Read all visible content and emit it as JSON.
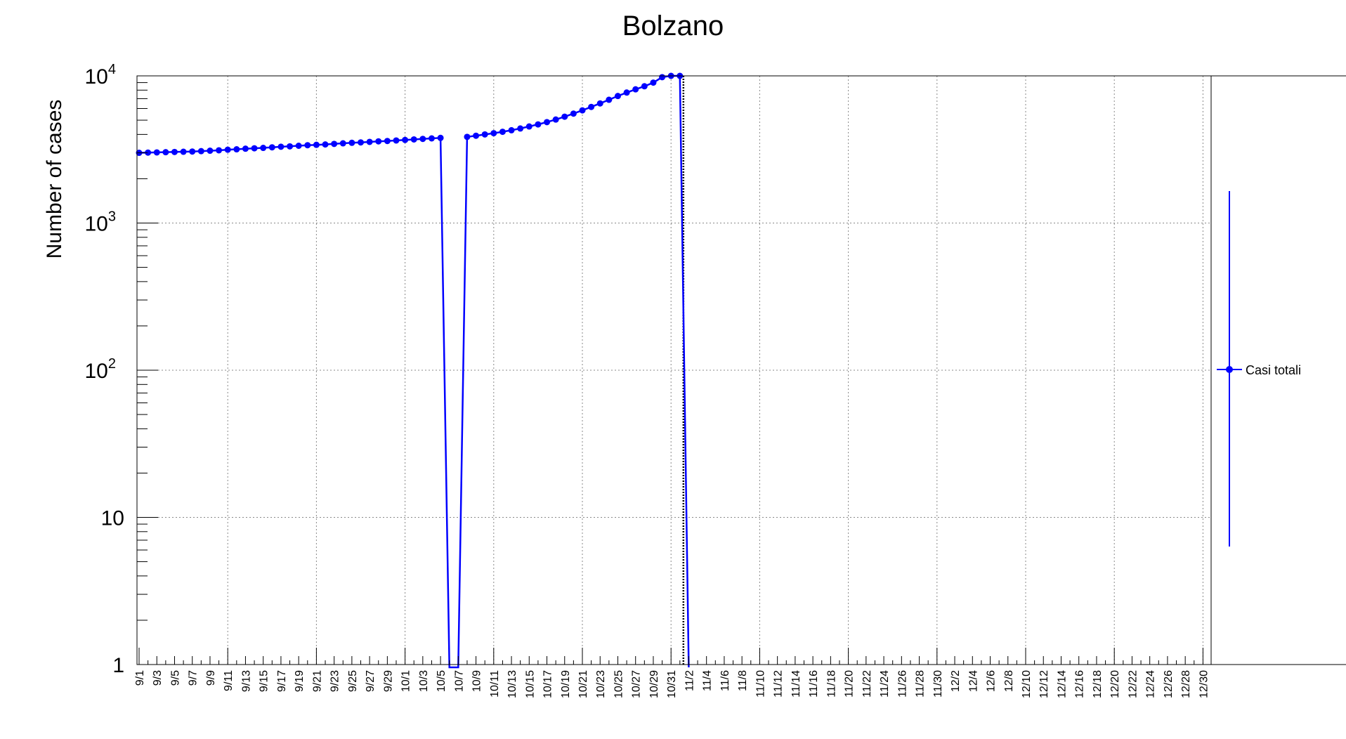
{
  "chart_data": {
    "type": "line",
    "title": "Bolzano",
    "xlabel": "",
    "ylabel": "Number of cases",
    "yscale": "log",
    "ylim": [
      1,
      10000
    ],
    "grid": true,
    "legend_position": "right",
    "y_tick_labels": [
      {
        "value": 1,
        "base": "1",
        "exp": ""
      },
      {
        "value": 10,
        "base": "10",
        "exp": ""
      },
      {
        "value": 100,
        "base": "10",
        "exp": "2"
      },
      {
        "value": 1000,
        "base": "10",
        "exp": "3"
      },
      {
        "value": 10000,
        "base": "10",
        "exp": "4"
      }
    ],
    "x_tick_labels": [
      "9/1",
      "9/3",
      "9/5",
      "9/7",
      "9/9",
      "9/11",
      "9/13",
      "9/15",
      "9/17",
      "9/19",
      "9/21",
      "9/23",
      "9/25",
      "9/27",
      "9/29",
      "10/1",
      "10/3",
      "10/5",
      "10/7",
      "10/9",
      "10/11",
      "10/13",
      "10/15",
      "10/17",
      "10/19",
      "10/21",
      "10/23",
      "10/25",
      "10/27",
      "10/29",
      "10/31",
      "11/2",
      "11/4",
      "11/6",
      "11/8",
      "11/10",
      "11/12",
      "11/14",
      "11/16",
      "11/18",
      "11/20",
      "11/22",
      "11/24",
      "11/26",
      "11/28",
      "11/30",
      "12/2",
      "12/4",
      "12/6",
      "12/8",
      "12/10",
      "12/12",
      "12/14",
      "12/16",
      "12/18",
      "12/20",
      "12/22",
      "12/24",
      "12/26",
      "12/28",
      "12/30"
    ],
    "marker_line": "11/1",
    "series": [
      {
        "name": "Casi totali",
        "color": "#0000ff",
        "x": [
          "9/1",
          "9/2",
          "9/3",
          "9/4",
          "9/5",
          "9/6",
          "9/7",
          "9/8",
          "9/9",
          "9/10",
          "9/11",
          "9/12",
          "9/13",
          "9/14",
          "9/15",
          "9/16",
          "9/17",
          "9/18",
          "9/19",
          "9/20",
          "9/21",
          "9/22",
          "9/23",
          "9/24",
          "9/25",
          "9/26",
          "9/27",
          "9/28",
          "9/29",
          "9/30",
          "10/1",
          "10/2",
          "10/3",
          "10/4",
          "10/5",
          "10/6",
          "10/7",
          "10/8",
          "10/9",
          "10/10",
          "10/11",
          "10/12",
          "10/13",
          "10/14",
          "10/15",
          "10/16",
          "10/17",
          "10/18",
          "10/19",
          "10/20",
          "10/21",
          "10/22",
          "10/23",
          "10/24",
          "10/25",
          "10/26",
          "10/27",
          "10/28",
          "10/29",
          "10/30",
          "10/31",
          "11/1",
          "11/2"
        ],
        "values": [
          3000,
          3010,
          3020,
          3030,
          3040,
          3050,
          3060,
          3080,
          3100,
          3120,
          3150,
          3170,
          3200,
          3220,
          3240,
          3270,
          3300,
          3320,
          3350,
          3380,
          3400,
          3420,
          3450,
          3480,
          3510,
          3530,
          3560,
          3590,
          3610,
          3640,
          3670,
          3700,
          3730,
          3760,
          3790,
          0,
          0,
          3850,
          3920,
          4000,
          4080,
          4170,
          4270,
          4390,
          4530,
          4680,
          4850,
          5050,
          5280,
          5540,
          5830,
          6150,
          6500,
          6880,
          7300,
          7700,
          8100,
          8500,
          9000,
          9800,
          10000,
          10000,
          0
        ]
      }
    ]
  }
}
